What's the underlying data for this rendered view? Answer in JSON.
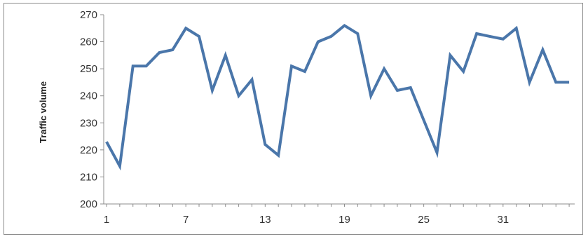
{
  "chart_data": {
    "type": "line",
    "title": "",
    "xlabel": "",
    "ylabel": "Traffic volume",
    "ylim": [
      200,
      270
    ],
    "yticks": [
      200,
      210,
      220,
      230,
      240,
      250,
      260,
      270
    ],
    "xlim": [
      1,
      36
    ],
    "xticks": [
      1,
      7,
      13,
      19,
      25,
      31
    ],
    "grid": false,
    "legend": "none",
    "line_color": "#4a76aa",
    "axis_color": "#8c8c8c",
    "series": [
      {
        "x": [
          1,
          2,
          3,
          4,
          5,
          6,
          7,
          8,
          9,
          10,
          11,
          12,
          13,
          14,
          15,
          16,
          17,
          18,
          19,
          20,
          21,
          22,
          23,
          24,
          25,
          26,
          27,
          28,
          29,
          30,
          31,
          32,
          33,
          34,
          35,
          36
        ],
        "values": [
          223,
          214,
          251,
          251,
          256,
          257,
          265,
          262,
          242,
          255,
          240,
          246,
          222,
          218,
          251,
          249,
          260,
          262,
          266,
          263,
          240,
          250,
          242,
          243,
          231,
          219,
          255,
          249,
          263,
          262,
          261,
          265,
          245,
          257,
          245,
          245
        ]
      }
    ]
  }
}
